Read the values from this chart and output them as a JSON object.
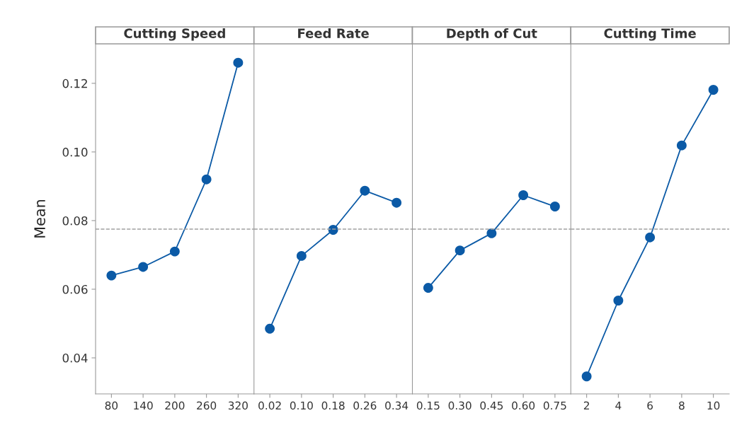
{
  "chart_data": [
    {
      "type": "line",
      "title": "Cutting Speed",
      "ylabel": "Mean",
      "categories": [
        "80",
        "140",
        "200",
        "260",
        "320"
      ],
      "series": [
        {
          "color": "#0b5aa6",
          "values": [
            0.064,
            0.0665,
            0.071,
            0.092,
            0.126
          ]
        }
      ],
      "ylim": [
        0.0295,
        0.1315
      ],
      "yticks": [
        {
          "value": 0.04,
          "label": "0.04"
        },
        {
          "value": 0.06,
          "label": "0.06"
        },
        {
          "value": 0.08,
          "label": "0.08"
        },
        {
          "value": 0.1,
          "label": "0.10"
        },
        {
          "value": 0.12,
          "label": "0.12"
        }
      ],
      "ref_lines": [
        {
          "axis": "y",
          "value": 0.0775,
          "color": "#a0a0a0",
          "line_style": "dashed"
        }
      ],
      "marker": "circle",
      "grid": false,
      "legend": false
    },
    {
      "type": "line",
      "title": "Feed Rate",
      "categories": [
        "0.02",
        "0.10",
        "0.18",
        "0.26",
        "0.34"
      ],
      "series": [
        {
          "color": "#0b5aa6",
          "values": [
            0.0485,
            0.0697,
            0.0773,
            0.0887,
            0.0852
          ]
        }
      ],
      "ylim": [
        0.0295,
        0.1315
      ],
      "tick_labels": "x",
      "ref_lines": [
        {
          "axis": "y",
          "value": 0.0775,
          "color": "#a0a0a0",
          "line_style": "dashed"
        }
      ],
      "marker": "circle",
      "grid": false,
      "legend": false
    },
    {
      "type": "line",
      "title": "Depth of Cut",
      "categories": [
        "0.15",
        "0.30",
        "0.45",
        "0.60",
        "0.75"
      ],
      "series": [
        {
          "color": "#0b5aa6",
          "values": [
            0.0604,
            0.0713,
            0.0763,
            0.0874,
            0.0841
          ]
        }
      ],
      "ylim": [
        0.0295,
        0.1315
      ],
      "tick_labels": "x",
      "ref_lines": [
        {
          "axis": "y",
          "value": 0.0775,
          "color": "#a0a0a0",
          "line_style": "dashed"
        }
      ],
      "marker": "circle",
      "grid": false,
      "legend": false
    },
    {
      "type": "line",
      "title": "Cutting Time",
      "categories": [
        "2",
        "4",
        "6",
        "8",
        "10"
      ],
      "series": [
        {
          "color": "#0b5aa6",
          "values": [
            0.0346,
            0.0567,
            0.0751,
            0.1019,
            0.1181
          ]
        }
      ],
      "ylim": [
        0.0295,
        0.1315
      ],
      "tick_labels": "x",
      "ref_lines": [
        {
          "axis": "y",
          "value": 0.0775,
          "color": "#a0a0a0",
          "line_style": "dashed"
        }
      ],
      "marker": "circle",
      "grid": false,
      "legend": false
    }
  ]
}
